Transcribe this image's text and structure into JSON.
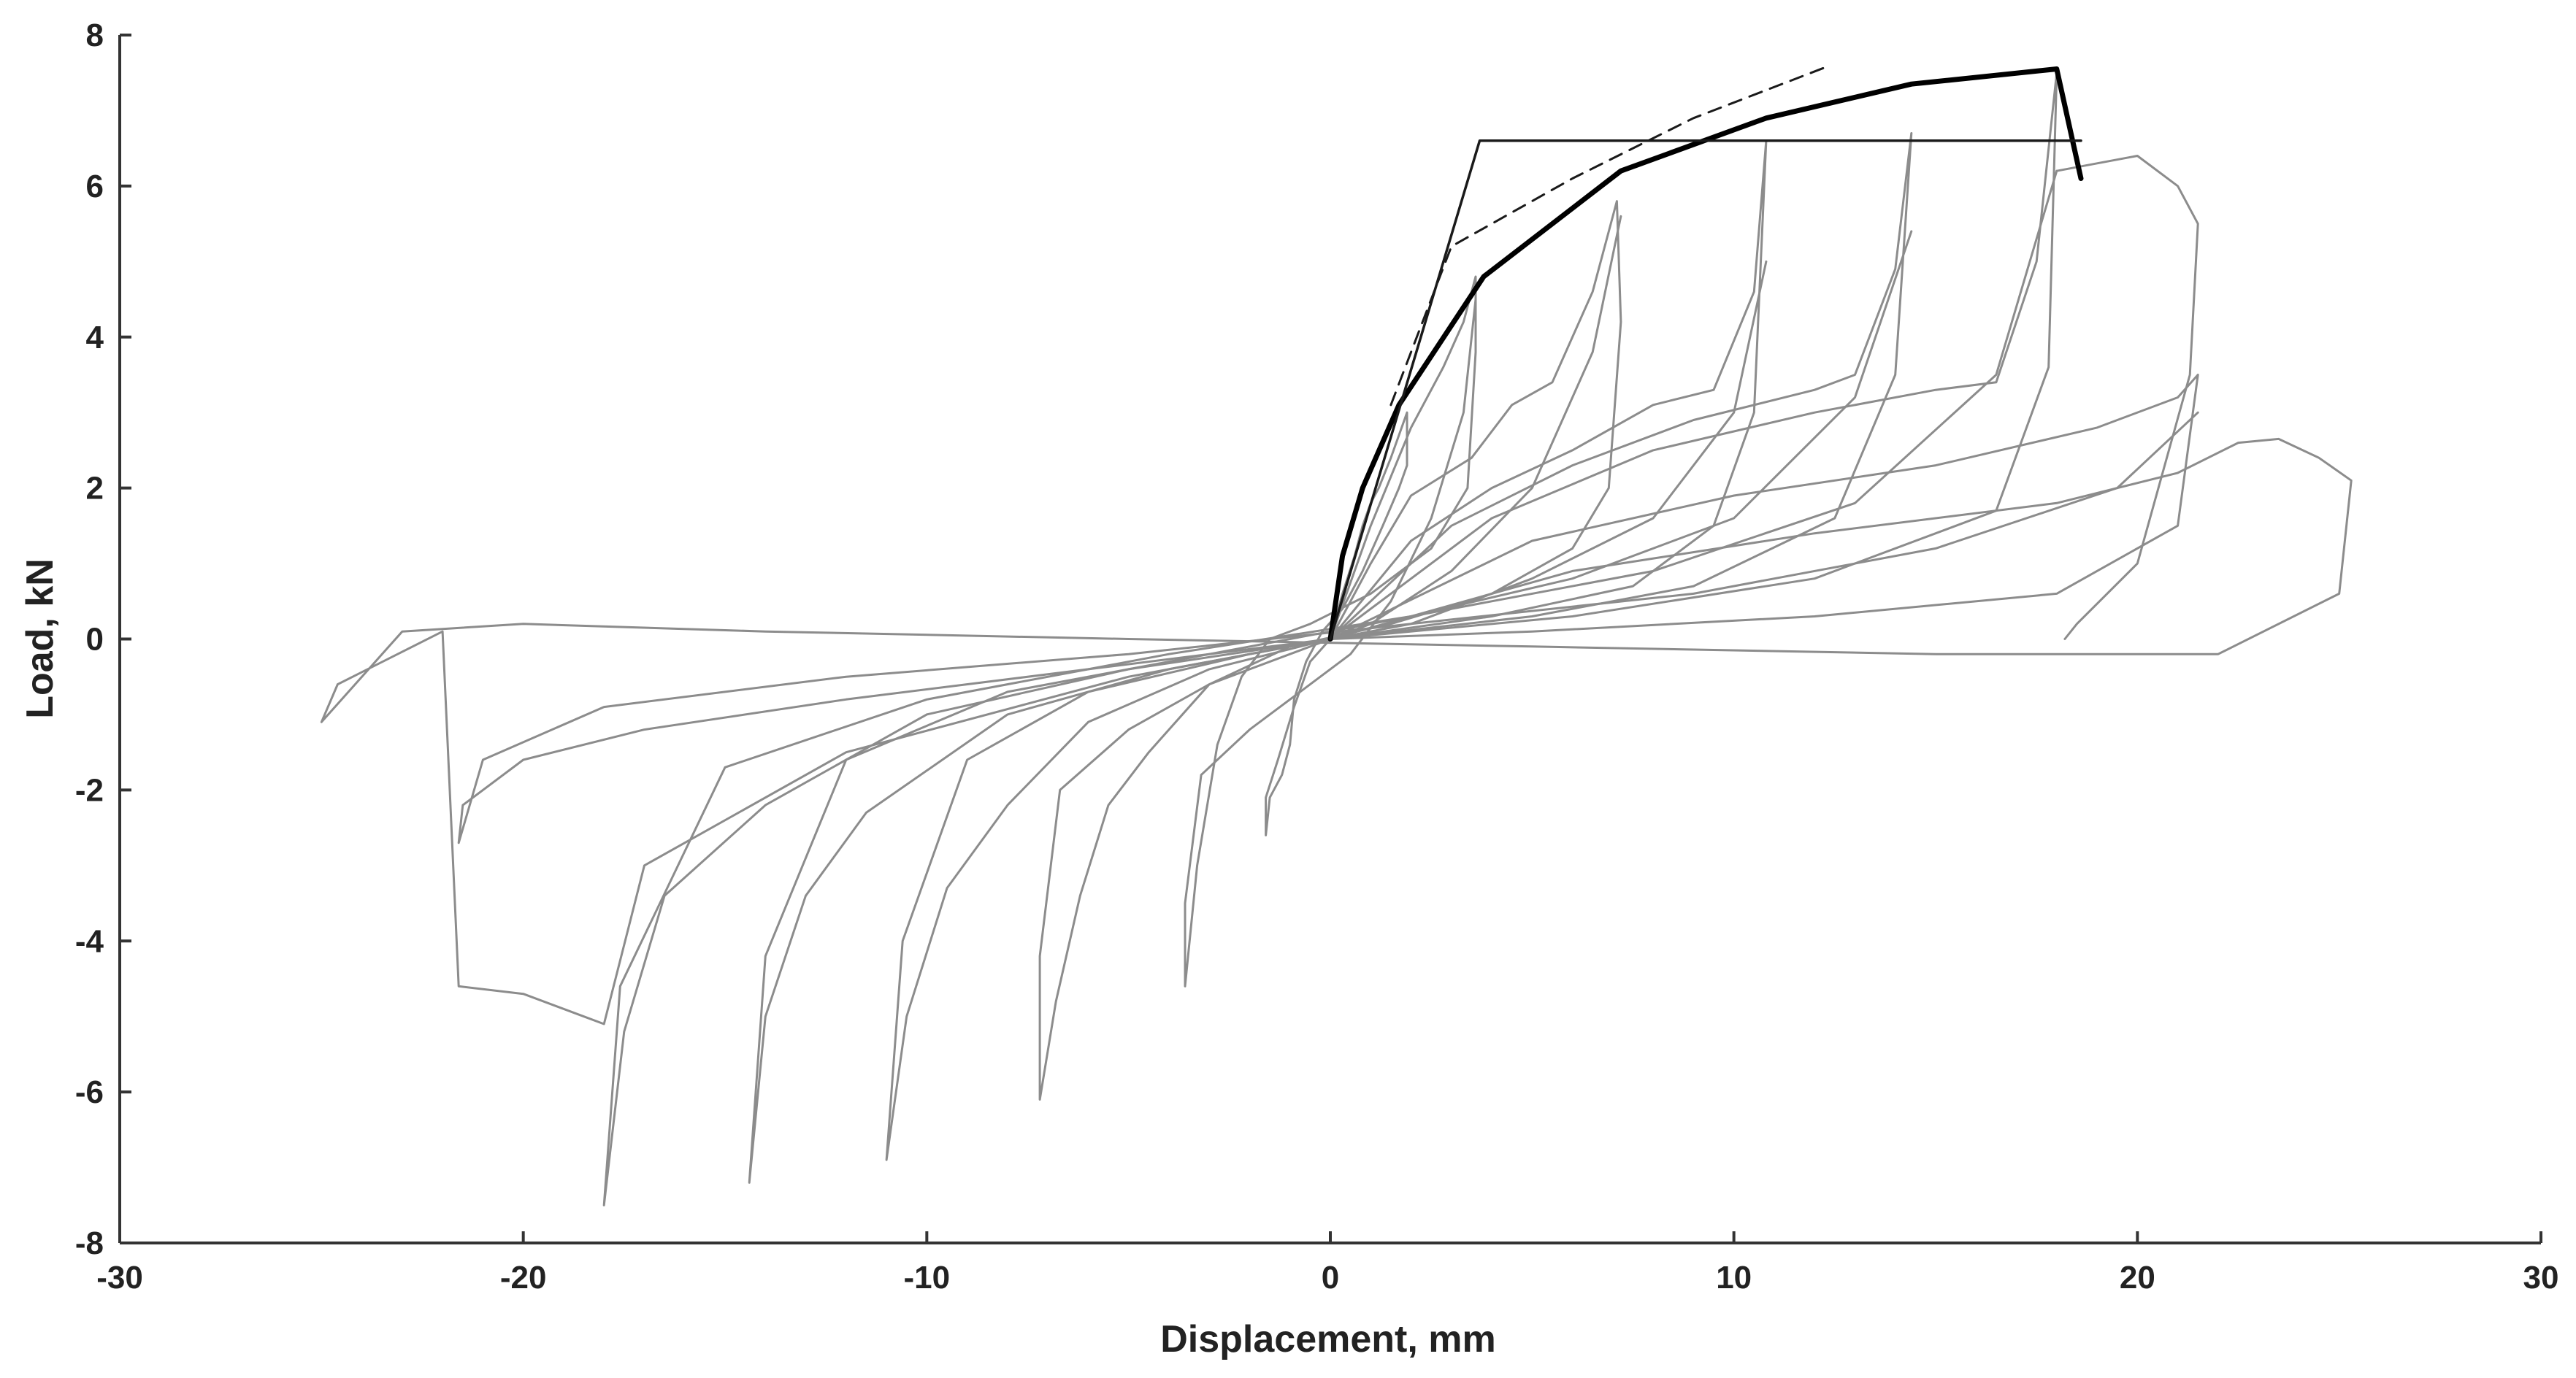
{
  "chart_data": {
    "type": "line",
    "title": "",
    "xlabel": "Displacement, mm",
    "ylabel": "Load, kN",
    "xlim": [
      -30,
      30
    ],
    "ylim": [
      -8,
      8
    ],
    "xticks": [
      -30,
      -20,
      -10,
      0,
      10,
      20,
      30
    ],
    "yticks": [
      -8,
      -6,
      -4,
      -2,
      0,
      2,
      4,
      6,
      8
    ],
    "xtick_labels": [
      "-30",
      "-20",
      "-10",
      "0",
      "10",
      "20",
      "30"
    ],
    "ytick_labels": [
      "-8",
      "-6",
      "-4",
      "-2",
      "0",
      "2",
      "4",
      "6",
      "8"
    ],
    "grid": false,
    "legend": "none",
    "colors": {
      "hysteresis": "#8c8c8c",
      "envelope": "#000000",
      "bilinear": "#1a1a1a",
      "axis": "#333333"
    },
    "series": [
      {
        "style": "gray-hysteresis",
        "x": [
          0.0,
          0.3,
          0.6,
          0.8,
          1.0,
          1.2,
          1.5,
          1.9,
          1.9,
          1.7,
          1.3,
          0.8,
          0.3,
          -0.2,
          -0.6,
          -0.9,
          -1.0,
          -1.2,
          -1.5,
          -1.6,
          -1.6,
          -1.3,
          -0.9,
          -0.5,
          0.0
        ],
        "y": [
          0.0,
          0.6,
          1.1,
          1.5,
          1.8,
          2.0,
          2.4,
          3.0,
          2.3,
          2.0,
          1.5,
          0.9,
          0.4,
          0.1,
          -0.3,
          -0.8,
          -1.4,
          -1.8,
          -2.1,
          -2.6,
          -2.1,
          -1.6,
          -0.9,
          -0.3,
          0.0
        ]
      },
      {
        "style": "gray-hysteresis",
        "x": [
          0.0,
          1.0,
          2.0,
          2.8,
          3.3,
          3.6,
          3.6,
          3.4,
          2.5,
          1.0,
          -0.5,
          -1.5,
          -2.2,
          -2.8,
          -3.3,
          -3.6,
          -3.6,
          -3.2,
          -2.0,
          -0.5,
          0.5,
          1.5,
          2.5,
          3.3,
          3.6
        ],
        "y": [
          0.0,
          1.5,
          2.8,
          3.6,
          4.2,
          4.8,
          3.8,
          2.0,
          1.2,
          0.6,
          0.2,
          0.0,
          -0.5,
          -1.4,
          -3.0,
          -4.6,
          -3.5,
          -1.8,
          -1.2,
          -0.6,
          -0.2,
          0.5,
          1.6,
          3.0,
          4.5
        ]
      },
      {
        "style": "gray-hysteresis",
        "x": [
          0.0,
          1.0,
          2.0,
          3.5,
          4.5,
          5.5,
          6.5,
          7.1,
          7.2,
          6.9,
          6.0,
          4.0,
          1.5,
          -1.0,
          -3.0,
          -4.5,
          -5.5,
          -6.2,
          -6.8,
          -7.2,
          -7.2,
          -6.7,
          -5.0,
          -3.0,
          -1.0,
          1.0,
          3.0,
          5.0,
          6.5,
          7.2
        ],
        "y": [
          0.0,
          1.0,
          1.9,
          2.4,
          3.1,
          3.4,
          4.6,
          5.8,
          4.2,
          2.0,
          1.2,
          0.6,
          0.2,
          -0.1,
          -0.6,
          -1.5,
          -2.2,
          -3.4,
          -4.8,
          -6.1,
          -4.2,
          -2.0,
          -1.2,
          -0.6,
          -0.2,
          0.2,
          0.9,
          2.0,
          3.8,
          5.6
        ]
      },
      {
        "style": "gray-hysteresis",
        "x": [
          0.0,
          2.0,
          4.0,
          6.0,
          8.0,
          9.5,
          10.5,
          10.8,
          10.5,
          9.5,
          7.5,
          4.0,
          0.0,
          -3.0,
          -6.0,
          -8.0,
          -9.5,
          -10.5,
          -11.0,
          -10.6,
          -9.0,
          -6.0,
          -2.0,
          2.0,
          5.0,
          8.0,
          10.0,
          10.8
        ],
        "y": [
          0.0,
          1.3,
          2.0,
          2.5,
          3.1,
          3.3,
          4.6,
          6.6,
          3.0,
          1.5,
          0.7,
          0.3,
          0.0,
          -0.4,
          -1.1,
          -2.2,
          -3.3,
          -5.0,
          -6.9,
          -4.0,
          -1.6,
          -0.7,
          -0.2,
          0.2,
          0.8,
          1.6,
          3.0,
          5.0
        ]
      },
      {
        "style": "gray-hysteresis",
        "x": [
          0.0,
          3.0,
          6.0,
          9.0,
          12.0,
          13.0,
          14.0,
          14.4,
          14.0,
          12.5,
          9.0,
          5.0,
          0.0,
          -4.0,
          -8.0,
          -11.5,
          -13.0,
          -14.0,
          -14.4,
          -14.0,
          -12.0,
          -8.0,
          -3.0,
          2.0,
          6.0,
          10.0,
          13.0,
          14.4
        ],
        "y": [
          0.0,
          1.5,
          2.3,
          2.9,
          3.3,
          3.5,
          4.9,
          6.7,
          3.5,
          1.6,
          0.7,
          0.3,
          0.0,
          -0.4,
          -1.0,
          -2.3,
          -3.4,
          -5.0,
          -7.2,
          -4.2,
          -1.6,
          -0.7,
          -0.2,
          0.3,
          0.8,
          1.6,
          3.2,
          5.4
        ]
      },
      {
        "style": "gray-hysteresis",
        "x": [
          0.0,
          4.0,
          8.0,
          12.0,
          15.0,
          16.5,
          17.5,
          18.0,
          17.8,
          16.5,
          12.0,
          6.0,
          0.0,
          -5.0,
          -10.0,
          -14.0,
          -16.5,
          -17.5,
          -18.0,
          -17.6,
          -15.0,
          -10.0,
          -4.0,
          2.0,
          8.0,
          13.0,
          16.5,
          18.0
        ],
        "y": [
          0.0,
          1.6,
          2.5,
          3.0,
          3.3,
          3.4,
          5.0,
          7.5,
          3.6,
          1.7,
          0.8,
          0.3,
          0.0,
          -0.4,
          -1.0,
          -2.2,
          -3.4,
          -5.2,
          -7.5,
          -4.6,
          -1.7,
          -0.8,
          -0.2,
          0.3,
          0.9,
          1.8,
          3.5,
          6.2
        ]
      },
      {
        "style": "gray-hysteresis",
        "x": [
          0.0,
          5.0,
          10.0,
          15.0,
          19.0,
          21.0,
          21.5,
          21.0,
          18.0,
          12.0,
          5.0,
          0.0,
          -6.0,
          -12.0,
          -17.0,
          -20.0,
          -21.5,
          -21.6,
          -21.0,
          -18.0,
          -12.0,
          -5.0,
          2.0,
          9.0,
          15.0,
          19.5,
          21.5
        ],
        "y": [
          0.0,
          1.3,
          1.9,
          2.3,
          2.8,
          3.2,
          3.5,
          1.5,
          0.6,
          0.3,
          0.1,
          0.0,
          -0.4,
          -0.8,
          -1.2,
          -1.6,
          -2.2,
          -2.7,
          -1.6,
          -0.9,
          -0.5,
          -0.2,
          0.2,
          0.6,
          1.2,
          2.0,
          3.0
        ]
      },
      {
        "style": "gray-hysteresis",
        "x": [
          0.0,
          6.0,
          12.0,
          18.0,
          21.0,
          22.5,
          23.5,
          24.5,
          25.3,
          25.0,
          22.0,
          15.0,
          5.0,
          -5.0,
          -14.0,
          -20.0,
          -23.0,
          -25.0,
          -24.6,
          -22.0,
          -21.6,
          -20.0,
          -18.5,
          -18.0,
          -17.0,
          -12.0,
          -5.0,
          0.0
        ],
        "y": [
          0.0,
          0.9,
          1.4,
          1.8,
          2.2,
          2.6,
          2.65,
          2.4,
          2.1,
          0.6,
          -0.2,
          -0.2,
          -0.1,
          0.0,
          0.1,
          0.2,
          0.1,
          -1.1,
          -0.6,
          0.1,
          -4.6,
          -4.7,
          -5.0,
          -5.1,
          -3.0,
          -1.5,
          -0.5,
          0.0
        ]
      },
      {
        "style": "gray-hysteresis",
        "x": [
          18.0,
          19.0,
          20.0,
          21.0,
          21.5,
          21.3,
          20.0,
          18.5,
          18.2
        ],
        "y": [
          6.2,
          6.3,
          6.4,
          6.0,
          5.5,
          3.5,
          1.0,
          0.2,
          0.0
        ]
      },
      {
        "style": "envelope",
        "x": [
          0.0,
          0.3,
          0.8,
          1.7,
          3.8,
          7.2,
          10.8,
          14.4,
          18.0,
          18.6
        ],
        "y": [
          0.0,
          1.1,
          2.0,
          3.1,
          4.8,
          6.2,
          6.9,
          7.35,
          7.55,
          6.1
        ]
      },
      {
        "style": "bilinear",
        "x": [
          0.0,
          3.7,
          18.6
        ],
        "y": [
          0.0,
          6.6,
          6.6
        ]
      },
      {
        "style": "dashed",
        "x": [
          1.5,
          3.0,
          6.0,
          9.0,
          12.4
        ],
        "y": [
          3.1,
          5.2,
          6.1,
          6.9,
          7.6
        ]
      }
    ]
  }
}
